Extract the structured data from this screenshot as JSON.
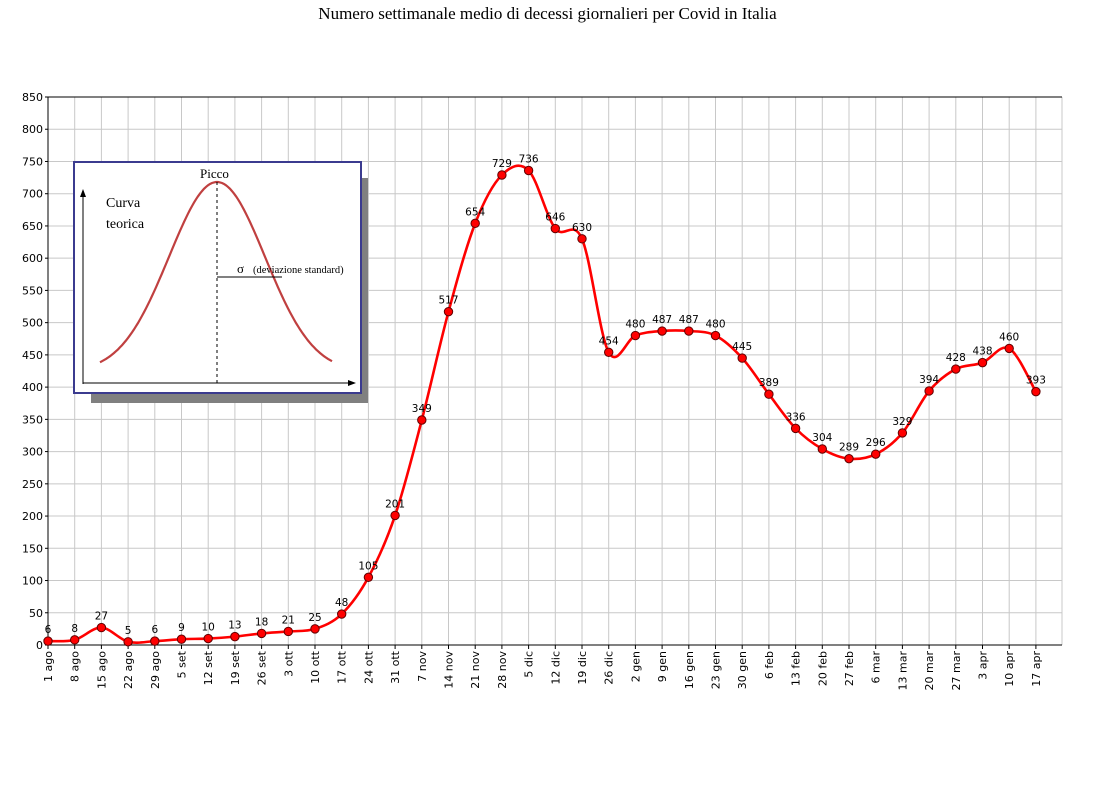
{
  "title": "Numero settimanale medio di decessi giornalieri per Covid in Italia",
  "chart_data": {
    "type": "line",
    "title": "Numero settimanale medio di decessi giornalieri per Covid in Italia",
    "xlabel": "",
    "ylabel": "",
    "ylim": [
      0,
      850
    ],
    "yticks": [
      0,
      50,
      100,
      150,
      200,
      250,
      300,
      350,
      400,
      450,
      500,
      550,
      600,
      650,
      700,
      750,
      800,
      850
    ],
    "grid": true,
    "categories": [
      "1 ago",
      "8 ago",
      "15 ago",
      "22 ago",
      "29 ago",
      "5 set",
      "12 set",
      "19 set",
      "26 set",
      "3 ott",
      "10 ott",
      "17 ott",
      "24 ott",
      "31 ott",
      "7 nov",
      "14 nov",
      "21 nov",
      "28 nov",
      "5 dic",
      "12 dic",
      "19 dic",
      "26 dic",
      "2 gen",
      "9 gen",
      "16 gen",
      "23 gen",
      "30 gen",
      "6 feb",
      "13 feb",
      "20 feb",
      "27 feb",
      "6 mar",
      "13 mar",
      "20 mar",
      "27 mar",
      "3 apr",
      "10 apr",
      "17 apr"
    ],
    "series": [
      {
        "values": [
          6,
          8,
          27,
          5,
          6,
          9,
          10,
          13,
          18,
          21,
          25,
          48,
          105,
          201,
          349,
          517,
          654,
          729,
          736,
          646,
          630,
          454,
          480,
          487,
          487,
          480,
          445,
          389,
          336,
          304,
          289,
          296,
          329,
          394,
          428,
          438,
          460,
          393
        ],
        "labels": [
          "6",
          "8",
          "27",
          "5",
          "6",
          "9",
          "10",
          "13",
          "18",
          "21",
          "25",
          "48",
          "105",
          "201",
          "349",
          "517",
          "654",
          "729",
          "736",
          "646",
          "630",
          "454",
          "480",
          "487",
          "487",
          "480",
          "445",
          "389",
          "336",
          "304",
          "289",
          "296",
          "329",
          "394",
          "428",
          "438",
          "460",
          "393"
        ],
        "color": "#ff0000"
      }
    ],
    "inset": {
      "curve_label": "Curva teorica",
      "curve_label_line1": "Curva",
      "curve_label_line2": "teorica",
      "peak_label": "Picco",
      "sigma_symbol": "σ",
      "sigma_label": "(deviazione standard)",
      "border_color": "#3b3b8f",
      "curve_color": "#c04040"
    }
  }
}
